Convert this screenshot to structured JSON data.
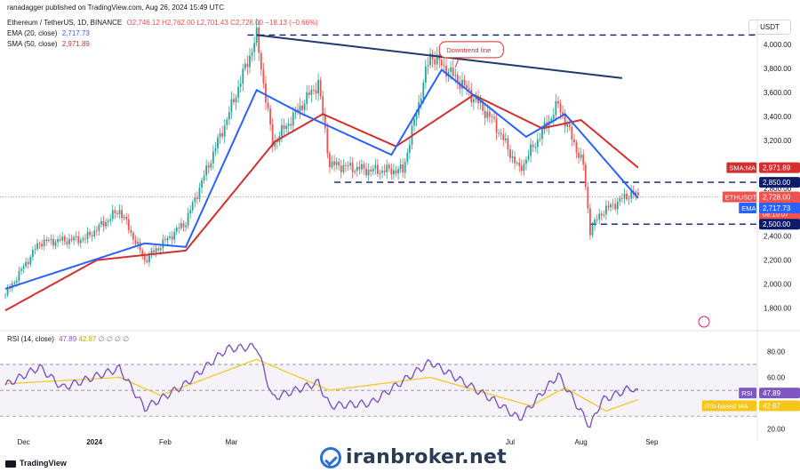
{
  "header": {
    "publisher": "ranadagger published on TradingView.com, Aug 26, 2024 15:49 UTC",
    "symbol": "Ethereum / TetherUS, 1D, BINANCE",
    "o": "O2,746.12",
    "h": "H2,762.00",
    "l": "L2,701.43",
    "c": "C2,728.00",
    "change": "−18.13 (−0.66%)",
    "ema_label": "EMA (20, close)",
    "ema_value": "2,717.73",
    "sma_label": "SMA (50, close)",
    "sma_value": "2,971.89",
    "rsi_label": "RSI (14, close)",
    "rsi_value": "47.89",
    "rsi_ma_value": "42.87",
    "rsi_extra": "∅ ∅ ∅ ∅",
    "currency": "USDT"
  },
  "footer": {
    "brand": "TradingView",
    "watermark": "iranbroker.net"
  },
  "colors": {
    "up": "#26a69a",
    "down": "#ef5350",
    "ema": "#2962ff",
    "sma": "#d32f2f",
    "rsi": "#7e57c2",
    "rsi_ma": "#f5c518",
    "trend": "#1e3a6e",
    "dash": "#0d1b6b"
  },
  "chart_data": [
    {
      "type": "candlestick",
      "title": "Ethereum / TetherUS, 1D, BINANCE",
      "ylim": [
        1700,
        4120
      ],
      "y_ticks": [
        "4,000.00",
        "3,800.00",
        "3,600.00",
        "3,400.00",
        "3,200.00",
        "2,800.00",
        "2,600.00",
        "2,400.00",
        "2,200.00",
        "2,000.00",
        "1,800.00"
      ],
      "x_ticks": [
        "Dec",
        "2024",
        "Feb",
        "Mar",
        "Jul",
        "Aug",
        "Sep"
      ],
      "price_anchors": [
        {
          "date": "2023-11-23",
          "price": 1910
        },
        {
          "date": "2023-12-08",
          "price": 2350
        },
        {
          "date": "2023-12-28",
          "price": 2380
        },
        {
          "date": "2024-01-12",
          "price": 2620
        },
        {
          "date": "2024-01-23",
          "price": 2200
        },
        {
          "date": "2024-02-10",
          "price": 2520
        },
        {
          "date": "2024-02-28",
          "price": 3380
        },
        {
          "date": "2024-03-12",
          "price": 4070
        },
        {
          "date": "2024-03-19",
          "price": 3170
        },
        {
          "date": "2024-04-08",
          "price": 3680
        },
        {
          "date": "2024-04-13",
          "price": 3000
        },
        {
          "date": "2024-05-01",
          "price": 2950
        },
        {
          "date": "2024-05-15",
          "price": 2950
        },
        {
          "date": "2024-05-27",
          "price": 3920
        },
        {
          "date": "2024-06-10",
          "price": 3670
        },
        {
          "date": "2024-06-24",
          "price": 3350
        },
        {
          "date": "2024-07-05",
          "price": 2950
        },
        {
          "date": "2024-07-22",
          "price": 3500
        },
        {
          "date": "2024-08-02",
          "price": 2990
        },
        {
          "date": "2024-08-05",
          "price": 2450
        },
        {
          "date": "2024-08-10",
          "price": 2600
        },
        {
          "date": "2024-08-23",
          "price": 2760
        },
        {
          "date": "2024-08-26",
          "price": 2728
        }
      ],
      "ema_anchors": [
        {
          "date": "2023-11-23",
          "value": 1960
        },
        {
          "date": "2024-01-23",
          "value": 2340
        },
        {
          "date": "2024-02-10",
          "value": 2310
        },
        {
          "date": "2024-03-12",
          "value": 3620
        },
        {
          "date": "2024-04-01",
          "value": 3420
        },
        {
          "date": "2024-05-10",
          "value": 3080
        },
        {
          "date": "2024-06-01",
          "value": 3790
        },
        {
          "date": "2024-07-08",
          "value": 3230
        },
        {
          "date": "2024-07-25",
          "value": 3420
        },
        {
          "date": "2024-08-26",
          "value": 2717.73
        }
      ],
      "sma_anchors": [
        {
          "date": "2023-11-23",
          "value": 1780
        },
        {
          "date": "2024-01-02",
          "value": 2200
        },
        {
          "date": "2024-02-10",
          "value": 2280
        },
        {
          "date": "2024-03-20",
          "value": 3190
        },
        {
          "date": "2024-04-10",
          "value": 3420
        },
        {
          "date": "2024-05-12",
          "value": 3150
        },
        {
          "date": "2024-06-15",
          "value": 3580
        },
        {
          "date": "2024-07-15",
          "value": 3300
        },
        {
          "date": "2024-08-01",
          "value": 3370
        },
        {
          "date": "2024-08-26",
          "value": 2971.89
        }
      ],
      "annotations": [
        {
          "text": "Downtrend line",
          "from": {
            "date": "2024-03-12",
            "price": 4080
          },
          "to": {
            "date": "2024-08-19",
            "price": 3720
          }
        },
        {
          "level": 4080,
          "style": "dashed"
        },
        {
          "level": 2850,
          "style": "dashed"
        },
        {
          "level": 2500,
          "style": "dashed"
        }
      ],
      "price_tags": [
        {
          "name": "SMA:MA",
          "value": "2,971.89",
          "color": "#d32f2f"
        },
        {
          "name": "",
          "value": "2,850.00",
          "color": "#0d1b6b"
        },
        {
          "name": "ETHUSDT",
          "value": "2,728.00",
          "extra": [
            "+35.62%",
            "08:10:07"
          ],
          "color": "#ef5350"
        },
        {
          "name": "EMA",
          "value": "2,717.73",
          "color": "#2962ff"
        },
        {
          "name": "",
          "value": "2,500.00",
          "color": "#0d1b6b"
        }
      ]
    },
    {
      "type": "line",
      "title": "RSI (14, close)",
      "ylim": [
        15,
        92
      ],
      "y_ticks": [
        "80.00",
        "60.00",
        "20.00"
      ],
      "bands": [
        70,
        50,
        30
      ],
      "rsi_anchors": [
        {
          "date": "2023-11-23",
          "value": 54
        },
        {
          "date": "2023-12-08",
          "value": 68
        },
        {
          "date": "2023-12-18",
          "value": 52
        },
        {
          "date": "2024-01-12",
          "value": 67
        },
        {
          "date": "2024-01-23",
          "value": 36
        },
        {
          "date": "2024-02-10",
          "value": 55
        },
        {
          "date": "2024-02-28",
          "value": 82
        },
        {
          "date": "2024-03-12",
          "value": 84
        },
        {
          "date": "2024-03-19",
          "value": 44
        },
        {
          "date": "2024-04-08",
          "value": 56
        },
        {
          "date": "2024-04-13",
          "value": 38
        },
        {
          "date": "2024-05-01",
          "value": 40
        },
        {
          "date": "2024-05-27",
          "value": 72
        },
        {
          "date": "2024-06-24",
          "value": 42
        },
        {
          "date": "2024-07-05",
          "value": 28
        },
        {
          "date": "2024-07-22",
          "value": 62
        },
        {
          "date": "2024-08-05",
          "value": 22
        },
        {
          "date": "2024-08-10",
          "value": 42
        },
        {
          "date": "2024-08-23",
          "value": 52
        },
        {
          "date": "2024-08-26",
          "value": 47.89
        }
      ],
      "rsi_ma_anchors": [
        {
          "date": "2023-11-23",
          "value": 55
        },
        {
          "date": "2024-01-12",
          "value": 60
        },
        {
          "date": "2024-01-30",
          "value": 46
        },
        {
          "date": "2024-03-12",
          "value": 74
        },
        {
          "date": "2024-04-13",
          "value": 50
        },
        {
          "date": "2024-05-27",
          "value": 60
        },
        {
          "date": "2024-07-10",
          "value": 38
        },
        {
          "date": "2024-07-25",
          "value": 52
        },
        {
          "date": "2024-08-12",
          "value": 34
        },
        {
          "date": "2024-08-26",
          "value": 42.87
        }
      ],
      "price_tags": [
        {
          "name": "RSI",
          "value": "47.89",
          "color": "#7e57c2"
        },
        {
          "name": "RSI-based MA",
          "value": "42.87",
          "color": "#f5c518"
        }
      ]
    }
  ]
}
